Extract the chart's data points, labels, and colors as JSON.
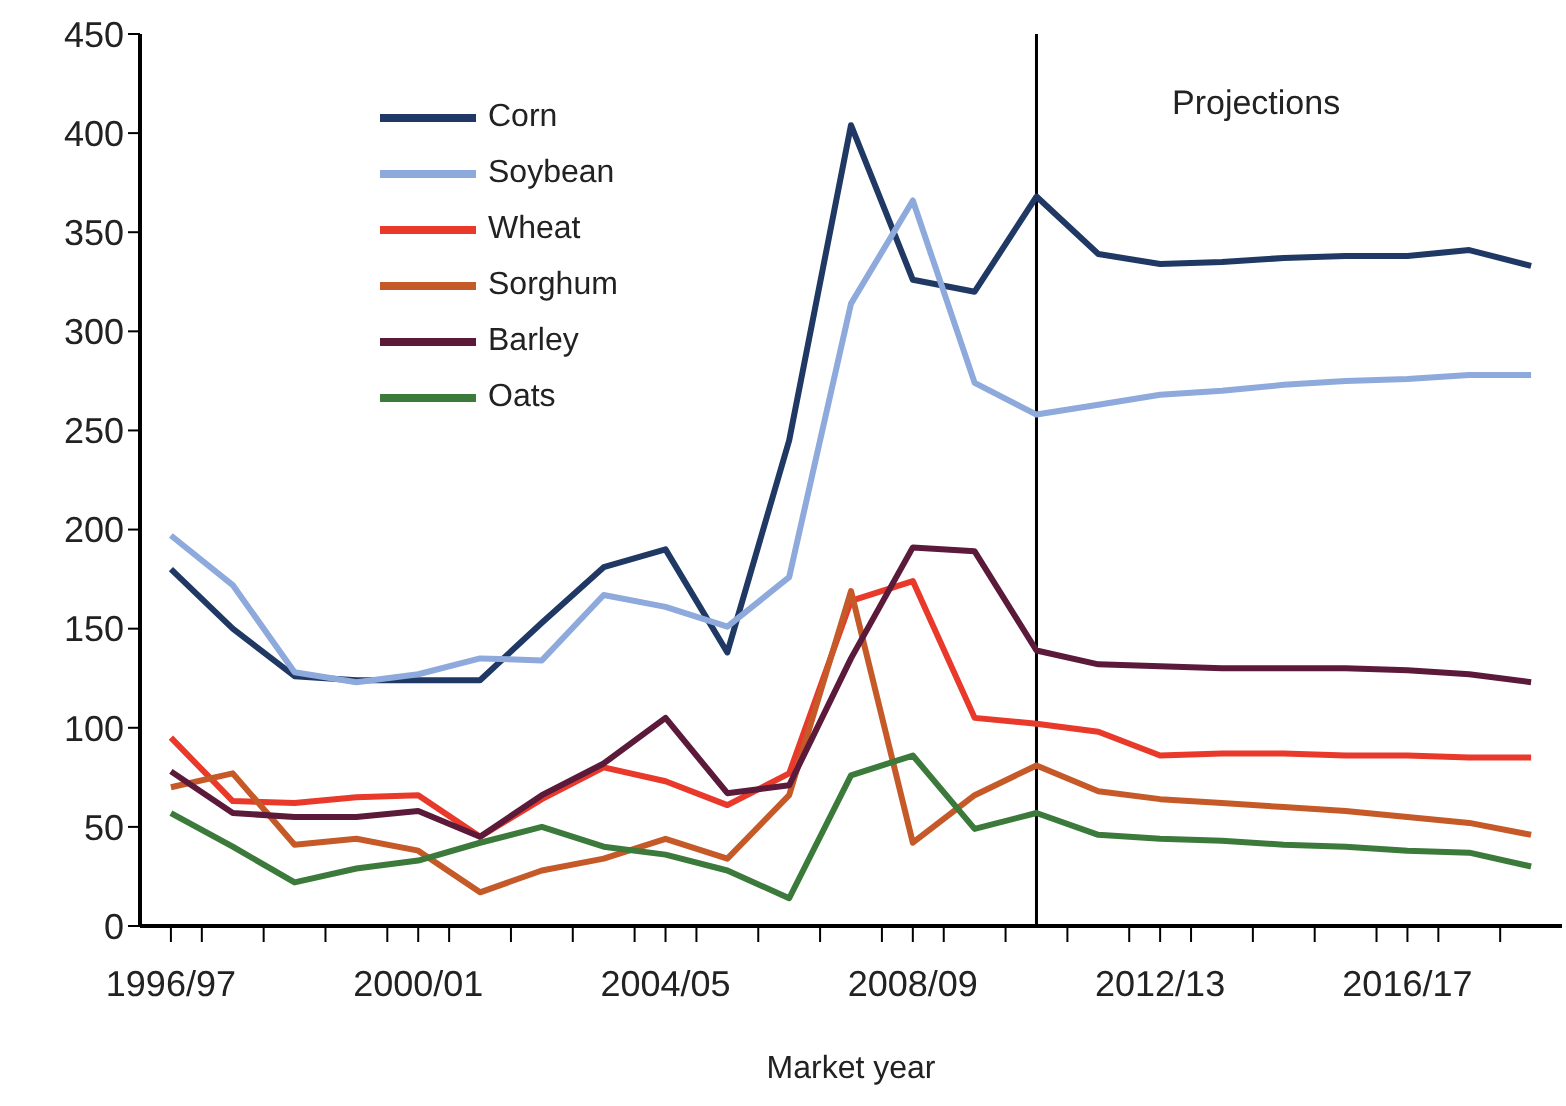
{
  "chart_data": {
    "type": "line",
    "xlabel": "Market year",
    "x": [
      "1996",
      "1997",
      "1998",
      "1999",
      "2000",
      "2001",
      "2002",
      "2003",
      "2004",
      "2005",
      "2006",
      "2007",
      "2008",
      "2009",
      "2010",
      "2011",
      "2012",
      "2013",
      "2014",
      "2015",
      "2016",
      "2017",
      "2018"
    ],
    "xlim": [
      "1995-07",
      "2018-07"
    ],
    "xticks": [
      {
        "value": "1996",
        "label": "1996/97"
      },
      {
        "value": "2000",
        "label": "2000/01"
      },
      {
        "value": "2004",
        "label": "2004/05"
      },
      {
        "value": "2008",
        "label": "2008/09"
      },
      {
        "value": "2012",
        "label": "2012/13"
      },
      {
        "value": "2016",
        "label": "2016/17"
      },
      {
        "value": "1996-07",
        "label": null
      },
      {
        "value": "1997-07",
        "label": null
      },
      {
        "value": "1998-07",
        "label": null
      },
      {
        "value": "1999-07",
        "label": null
      },
      {
        "value": "2000-07",
        "label": null
      },
      {
        "value": "2001-07",
        "label": null
      },
      {
        "value": "2002-07",
        "label": null
      },
      {
        "value": "2003-07",
        "label": null
      },
      {
        "value": "2004-07",
        "label": null
      },
      {
        "value": "2005-07",
        "label": null
      },
      {
        "value": "2006-07",
        "label": null
      },
      {
        "value": "2007-07",
        "label": null
      },
      {
        "value": "2008-07",
        "label": null
      },
      {
        "value": "2009-07",
        "label": null
      },
      {
        "value": "2010-07",
        "label": null
      },
      {
        "value": "2011-07",
        "label": null
      },
      {
        "value": "2012-07",
        "label": null
      },
      {
        "value": "2013-07",
        "label": null
      },
      {
        "value": "2014-07",
        "label": null
      },
      {
        "value": "2015-07",
        "label": null
      },
      {
        "value": "2016-07",
        "label": null
      },
      {
        "value": "2017-07",
        "label": null
      }
    ],
    "ylim": [
      0,
      450
    ],
    "yticks": [
      0,
      50,
      100,
      150,
      200,
      250,
      300,
      350,
      400,
      450
    ],
    "series": [
      {
        "name": "Corn",
        "color": "#1f3864",
        "values": [
          180,
          150,
          126,
          124,
          124,
          124,
          153,
          181,
          190,
          138,
          245,
          404,
          326,
          320,
          368,
          339,
          334,
          335,
          337,
          338,
          338,
          341,
          333
        ]
      },
      {
        "name": "Soybean",
        "color": "#8ea9db",
        "values": [
          197,
          172,
          128,
          123,
          127,
          135,
          134,
          167,
          161,
          151,
          176,
          314,
          366,
          274,
          258,
          263,
          268,
          270,
          273,
          275,
          276,
          278,
          278
        ]
      },
      {
        "name": "Wheat",
        "color": "#e8392a",
        "values": [
          95,
          63,
          62,
          65,
          66,
          45,
          64,
          80,
          73,
          61,
          77,
          164,
          174,
          105,
          102,
          98,
          86,
          87,
          87,
          86,
          86,
          85,
          85
        ]
      },
      {
        "name": "Sorghum",
        "color": "#c55a28",
        "values": [
          70,
          77,
          41,
          44,
          38,
          17,
          28,
          34,
          44,
          34,
          66,
          169,
          42,
          66,
          81,
          68,
          64,
          62,
          60,
          58,
          55,
          52,
          46
        ]
      },
      {
        "name": "Barley",
        "color": "#5c1a3a",
        "values": [
          78,
          57,
          55,
          55,
          58,
          45,
          66,
          82,
          105,
          67,
          71,
          135,
          191,
          189,
          139,
          132,
          131,
          130,
          130,
          130,
          129,
          127,
          123
        ]
      },
      {
        "name": "Oats",
        "color": "#3b7a3b",
        "values": [
          57,
          40,
          22,
          29,
          33,
          42,
          50,
          40,
          36,
          28,
          14,
          76,
          86,
          49,
          57,
          46,
          44,
          43,
          41,
          40,
          38,
          37,
          30
        ]
      }
    ],
    "ref_lines": [
      {
        "axis": "x",
        "value": "2010",
        "color": "#000000"
      }
    ],
    "annotations": [
      "Projections"
    ],
    "legend": "top left",
    "marker": "none",
    "line_style": "solid"
  }
}
